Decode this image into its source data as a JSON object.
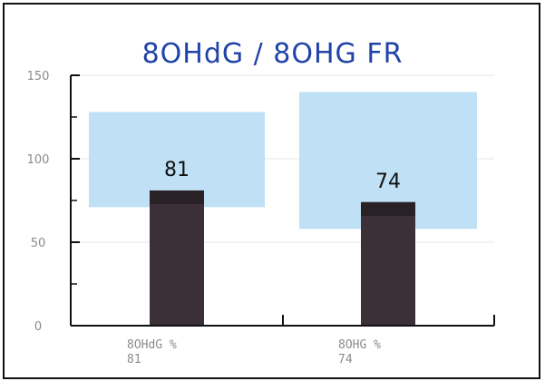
{
  "chart_data": {
    "type": "bar",
    "title": "8OHdG / 8OHG FR",
    "xlabel": "",
    "ylabel": "",
    "ylim": [
      0,
      150
    ],
    "yticks": [
      0,
      50,
      100,
      150
    ],
    "grid": true,
    "categories": [
      "8OHdG %",
      "8OHG %"
    ],
    "category_sublabels": [
      "81",
      "74"
    ],
    "values": [
      81,
      74
    ],
    "data_labels": [
      "81",
      "74"
    ],
    "reference_ranges": [
      {
        "category": "8OHdG %",
        "low": 71,
        "high": 128
      },
      {
        "category": "8OHG %",
        "low": 58,
        "high": 140
      }
    ],
    "colors": {
      "bar": "#3b3038",
      "bar_top": "#2a2127",
      "range": "#bfe0f5",
      "title": "#1f43a8",
      "grid": "#e6e6e6"
    }
  }
}
